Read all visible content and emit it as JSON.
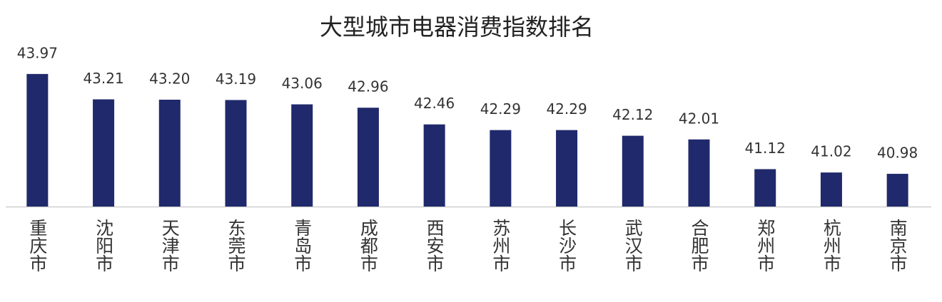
{
  "chart_data": {
    "type": "bar",
    "title": "大型城市电器消费指数排名",
    "categories": [
      "重庆市",
      "沈阳市",
      "天津市",
      "东莞市",
      "青岛市",
      "成都市",
      "西安市",
      "苏州市",
      "长沙市",
      "武汉市",
      "合肥市",
      "郑州市",
      "杭州市",
      "南京市"
    ],
    "values": [
      43.97,
      43.21,
      43.2,
      43.19,
      43.06,
      42.96,
      42.46,
      42.29,
      42.29,
      42.12,
      42.01,
      41.12,
      41.02,
      40.98
    ],
    "value_labels": [
      "43.97",
      "43.21",
      "43.20",
      "43.19",
      "43.06",
      "42.96",
      "42.46",
      "42.29",
      "42.29",
      "42.12",
      "42.01",
      "41.12",
      "41.02",
      "40.98"
    ],
    "color": "#20296b",
    "ylim": [
      40,
      44.5
    ]
  }
}
